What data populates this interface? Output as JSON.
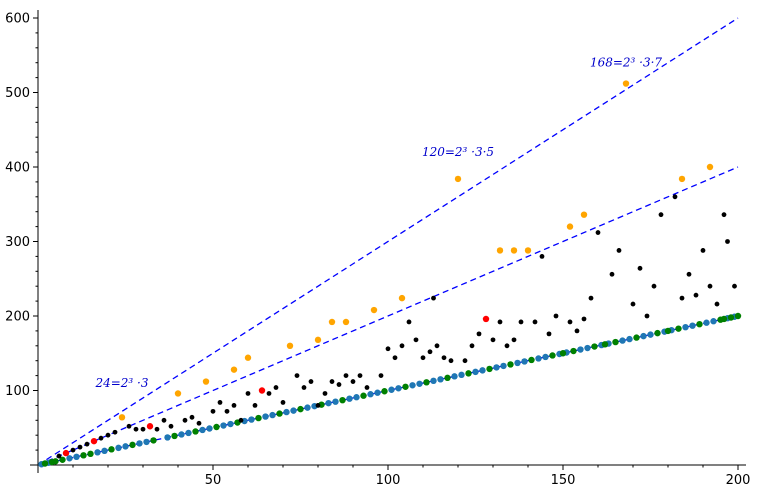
{
  "chart_data": {
    "type": "scatter",
    "xlim": [
      0,
      200
    ],
    "ylim": [
      0,
      600
    ],
    "xticks": [
      50,
      100,
      150,
      200
    ],
    "yticks": [
      100,
      200,
      300,
      400,
      500,
      600
    ],
    "grid": false,
    "colors": {
      "axis": "#000000",
      "lines": "#0000ff",
      "annotation": "#0000cc",
      "black": "#000000",
      "blue": "#1f77b4",
      "green": "#008000",
      "red": "#ff0000",
      "orange": "#ffa500"
    },
    "reference_lines": [
      {
        "slope": 3,
        "style": "dashed",
        "color": "#0000ff"
      },
      {
        "slope": 2,
        "style": "dashed",
        "color": "#0000ff"
      },
      {
        "slope": 1,
        "style": "dashed",
        "color": "#0000ff"
      }
    ],
    "annotations": [
      {
        "text": "24=2³ ·3",
        "x": 24,
        "y": 105
      },
      {
        "text": "120=2³ ·3·5",
        "x": 120,
        "y": 415
      },
      {
        "text": "168=2³ ·3·7",
        "x": 168,
        "y": 535
      }
    ],
    "series": [
      {
        "color": "#1f77b4",
        "points": [
          [
            1,
            1
          ],
          [
            3,
            3
          ],
          [
            9,
            9
          ],
          [
            11,
            11
          ],
          [
            17,
            17
          ],
          [
            19,
            19
          ],
          [
            23,
            23
          ],
          [
            25,
            25
          ],
          [
            29,
            29
          ],
          [
            31,
            31
          ],
          [
            37,
            37
          ],
          [
            41,
            41
          ],
          [
            43,
            43
          ],
          [
            47,
            47
          ],
          [
            49,
            49
          ],
          [
            53,
            53
          ],
          [
            55,
            55
          ],
          [
            59,
            59
          ],
          [
            61,
            61
          ],
          [
            65,
            65
          ],
          [
            67,
            67
          ],
          [
            71,
            71
          ],
          [
            73,
            73
          ],
          [
            77,
            77
          ],
          [
            79,
            79
          ],
          [
            83,
            83
          ],
          [
            85,
            85
          ],
          [
            89,
            89
          ],
          [
            91,
            91
          ],
          [
            95,
            95
          ],
          [
            97,
            97
          ],
          [
            101,
            101
          ],
          [
            103,
            103
          ],
          [
            107,
            107
          ],
          [
            109,
            109
          ],
          [
            113,
            113
          ],
          [
            115,
            115
          ],
          [
            119,
            119
          ],
          [
            121,
            121
          ],
          [
            125,
            125
          ],
          [
            127,
            127
          ],
          [
            131,
            131
          ],
          [
            133,
            133
          ],
          [
            137,
            137
          ],
          [
            139,
            139
          ],
          [
            143,
            143
          ],
          [
            145,
            145
          ],
          [
            149,
            149
          ],
          [
            151,
            151
          ],
          [
            155,
            155
          ],
          [
            157,
            157
          ],
          [
            161,
            161
          ],
          [
            163,
            163
          ],
          [
            167,
            167
          ],
          [
            169,
            169
          ],
          [
            173,
            173
          ],
          [
            175,
            175
          ],
          [
            179,
            179
          ],
          [
            181,
            181
          ],
          [
            185,
            185
          ],
          [
            187,
            187
          ],
          [
            191,
            191
          ],
          [
            193,
            193
          ],
          [
            197,
            197
          ],
          [
            199,
            199
          ]
        ]
      },
      {
        "color": "#008000",
        "points": [
          [
            2,
            2
          ],
          [
            4,
            4
          ],
          [
            5,
            5
          ],
          [
            7,
            7
          ],
          [
            13,
            13
          ],
          [
            15,
            15
          ],
          [
            21,
            21
          ],
          [
            27,
            27
          ],
          [
            33,
            33
          ],
          [
            39,
            39
          ],
          [
            45,
            45
          ],
          [
            51,
            51
          ],
          [
            57,
            57
          ],
          [
            63,
            63
          ],
          [
            69,
            69
          ],
          [
            75,
            75
          ],
          [
            81,
            81
          ],
          [
            87,
            87
          ],
          [
            93,
            93
          ],
          [
            99,
            99
          ],
          [
            105,
            105
          ],
          [
            111,
            111
          ],
          [
            117,
            117
          ],
          [
            123,
            123
          ],
          [
            129,
            129
          ],
          [
            135,
            135
          ],
          [
            141,
            141
          ],
          [
            147,
            147
          ],
          [
            153,
            153
          ],
          [
            159,
            159
          ],
          [
            165,
            165
          ],
          [
            171,
            171
          ],
          [
            177,
            177
          ],
          [
            183,
            183
          ],
          [
            189,
            189
          ],
          [
            195,
            195
          ],
          [
            198,
            198
          ],
          [
            200,
            200
          ],
          [
            196,
            196
          ],
          [
            180,
            180
          ],
          [
            162,
            162
          ],
          [
            150,
            150
          ]
        ]
      },
      {
        "color": "#000000",
        "points": [
          [
            6,
            12
          ],
          [
            10,
            20
          ],
          [
            12,
            24
          ],
          [
            14,
            28
          ],
          [
            18,
            36
          ],
          [
            20,
            40
          ],
          [
            22,
            44
          ],
          [
            26,
            52
          ],
          [
            28,
            48
          ],
          [
            30,
            48
          ],
          [
            34,
            48
          ],
          [
            36,
            60
          ],
          [
            38,
            52
          ],
          [
            42,
            60
          ],
          [
            44,
            64
          ],
          [
            46,
            56
          ],
          [
            50,
            72
          ],
          [
            52,
            84
          ],
          [
            54,
            72
          ],
          [
            56,
            80
          ],
          [
            58,
            60
          ],
          [
            60,
            96
          ],
          [
            62,
            80
          ],
          [
            66,
            96
          ],
          [
            68,
            104
          ],
          [
            70,
            84
          ],
          [
            74,
            120
          ],
          [
            76,
            104
          ],
          [
            78,
            112
          ],
          [
            80,
            80
          ],
          [
            82,
            96
          ],
          [
            84,
            112
          ],
          [
            86,
            108
          ],
          [
            88,
            120
          ],
          [
            90,
            112
          ],
          [
            92,
            120
          ],
          [
            94,
            104
          ],
          [
            98,
            120
          ],
          [
            100,
            156
          ],
          [
            102,
            144
          ],
          [
            104,
            160
          ],
          [
            106,
            192
          ],
          [
            108,
            168
          ],
          [
            110,
            144
          ],
          [
            112,
            152
          ],
          [
            114,
            160
          ],
          [
            116,
            144
          ],
          [
            118,
            140
          ],
          [
            122,
            140
          ],
          [
            124,
            160
          ],
          [
            126,
            176
          ],
          [
            130,
            168
          ],
          [
            132,
            192
          ],
          [
            134,
            160
          ],
          [
            136,
            168
          ],
          [
            138,
            192
          ],
          [
            142,
            192
          ],
          [
            144,
            280
          ],
          [
            146,
            176
          ],
          [
            148,
            200
          ],
          [
            152,
            192
          ],
          [
            154,
            180
          ],
          [
            156,
            196
          ],
          [
            158,
            224
          ],
          [
            160,
            312
          ],
          [
            164,
            256
          ],
          [
            166,
            288
          ],
          [
            170,
            216
          ],
          [
            172,
            264
          ],
          [
            174,
            200
          ],
          [
            176,
            240
          ],
          [
            178,
            336
          ],
          [
            182,
            360
          ],
          [
            184,
            224
          ],
          [
            186,
            256
          ],
          [
            188,
            228
          ],
          [
            190,
            288
          ],
          [
            192,
            240
          ],
          [
            194,
            216
          ],
          [
            196,
            336
          ],
          [
            197,
            300
          ],
          [
            199,
            240
          ],
          [
            113,
            224
          ]
        ]
      },
      {
        "color": "#ffa500",
        "points": [
          [
            24,
            64
          ],
          [
            40,
            96
          ],
          [
            48,
            112
          ],
          [
            56,
            128
          ],
          [
            60,
            144
          ],
          [
            72,
            160
          ],
          [
            80,
            168
          ],
          [
            84,
            192
          ],
          [
            88,
            192
          ],
          [
            96,
            208
          ],
          [
            104,
            224
          ],
          [
            120,
            384
          ],
          [
            132,
            288
          ],
          [
            136,
            288
          ],
          [
            140,
            288
          ],
          [
            152,
            320
          ],
          [
            156,
            336
          ],
          [
            168,
            512
          ],
          [
            184,
            384
          ],
          [
            192,
            400
          ]
        ]
      },
      {
        "color": "#ff0000",
        "points": [
          [
            8,
            16
          ],
          [
            16,
            32
          ],
          [
            32,
            52
          ],
          [
            64,
            100
          ],
          [
            128,
            196
          ]
        ]
      }
    ]
  }
}
